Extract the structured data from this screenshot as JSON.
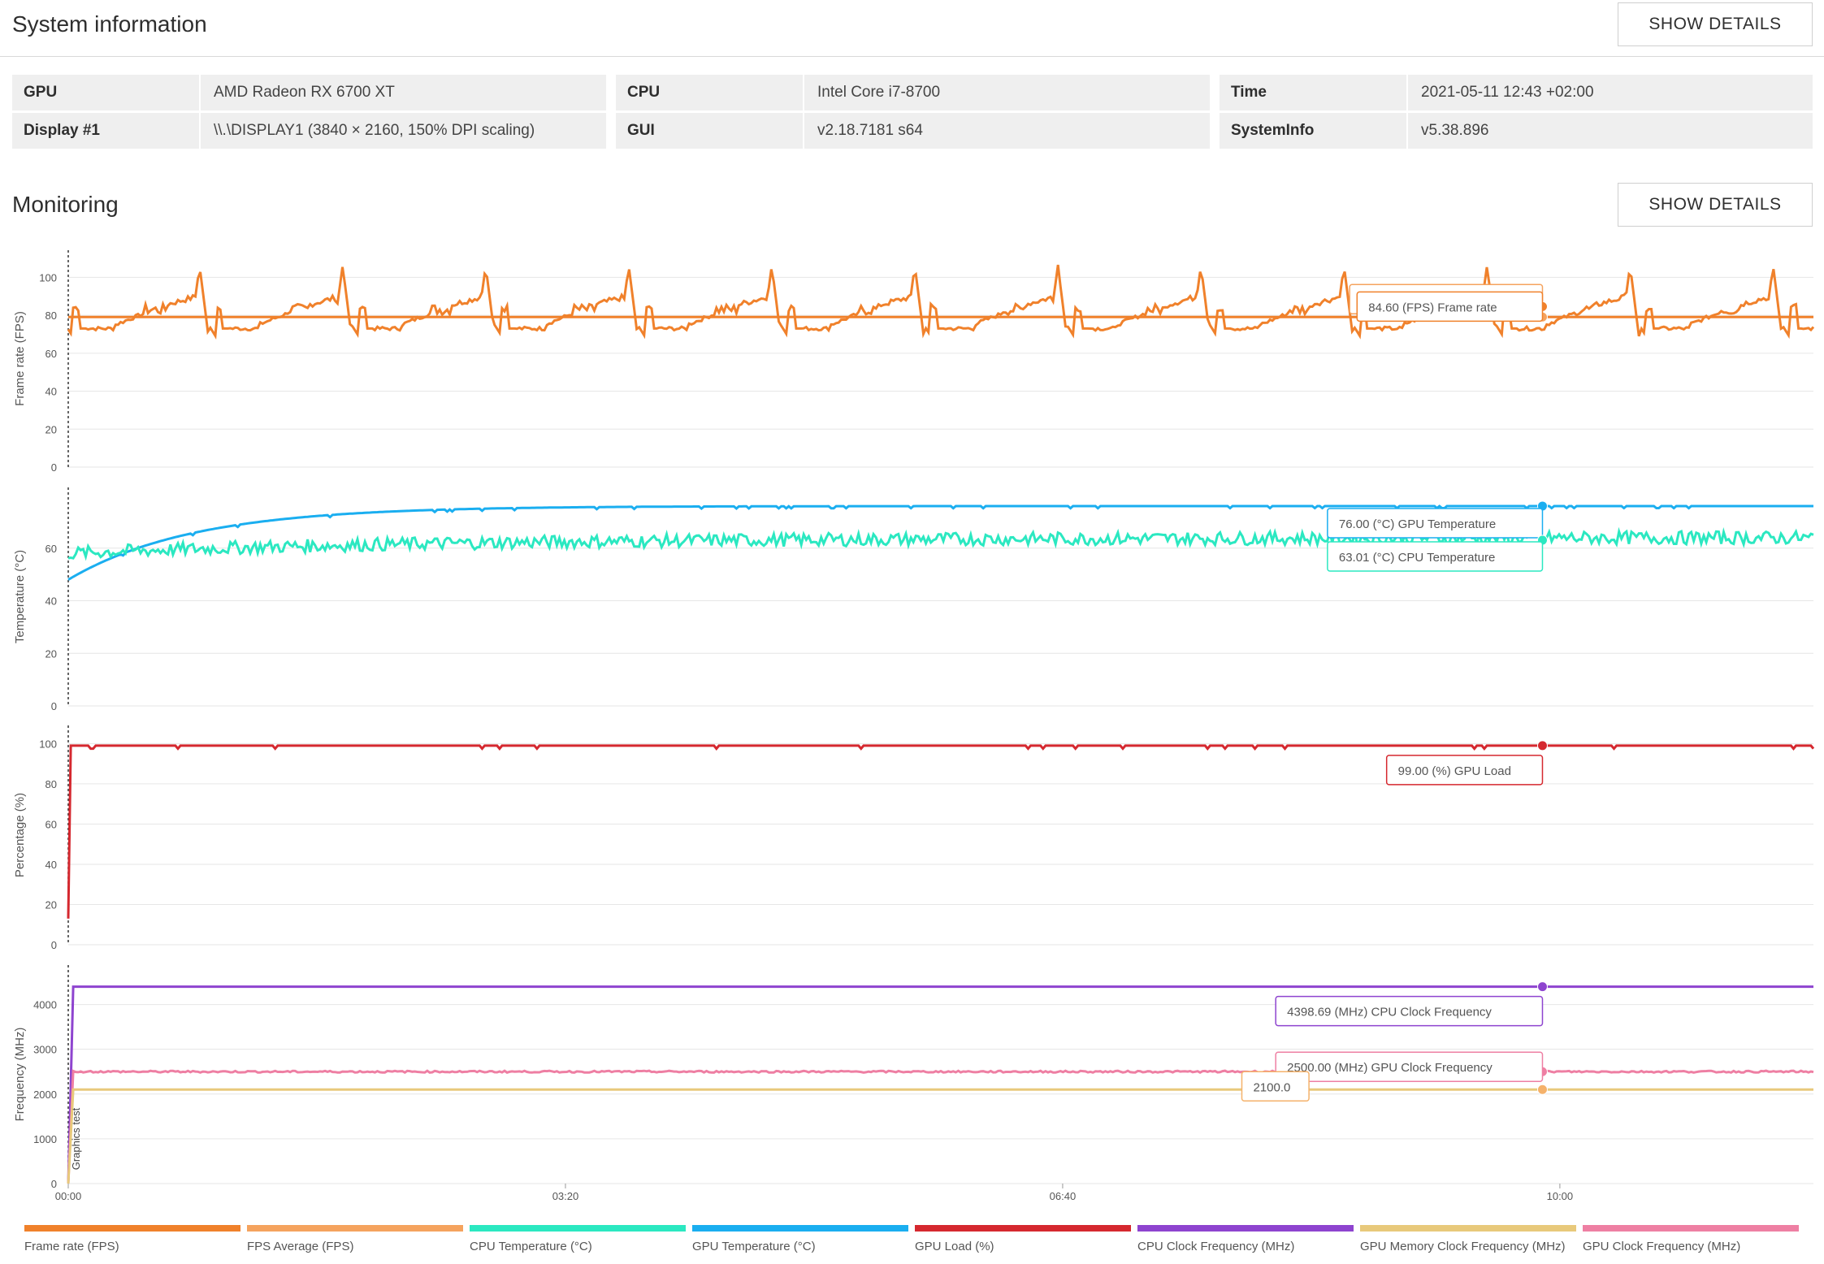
{
  "system_information": {
    "title": "System information",
    "button": "SHOW DETAILS",
    "rows": [
      [
        {
          "key": "GPU",
          "value": "AMD Radeon RX 6700 XT"
        },
        {
          "key": "CPU",
          "value": "Intel Core i7-8700"
        },
        {
          "key": "Time",
          "value": "2021-05-11 12:43 +02:00"
        }
      ],
      [
        {
          "key": "Display #1",
          "value": "\\\\.\\DISPLAY1 (3840 × 2160, 150% DPI scaling)"
        },
        {
          "key": "GUI",
          "value": "v2.18.7181 s64"
        },
        {
          "key": "SystemInfo",
          "value": "v5.38.896"
        }
      ]
    ]
  },
  "monitoring": {
    "title": "Monitoring",
    "button": "SHOW DETAILS"
  },
  "chart_data": [
    {
      "type": "line",
      "ylabel": "Frame rate (FPS)",
      "ylim": [
        0,
        110
      ],
      "yticks": [
        0,
        20,
        40,
        60,
        80,
        100
      ],
      "series": [
        {
          "name": "Frame rate (FPS)",
          "color": "#f0812b",
          "pattern": "fps"
        },
        {
          "name": "FPS Average (FPS)",
          "color": "#f0812b",
          "constant": 79.09
        }
      ],
      "tooltips": [
        {
          "text": "79.09 (FPS) FPS Average",
          "color": "#f5a35e",
          "value": 79.09
        },
        {
          "text": "84.60 (FPS) Frame rate",
          "color": "#f0812b",
          "value": 84.6
        }
      ]
    },
    {
      "type": "line",
      "ylabel": "Temperature (°C)",
      "ylim": [
        0,
        80
      ],
      "yticks": [
        0,
        20,
        40,
        60
      ],
      "series": [
        {
          "name": "GPU Temperature (°C)",
          "color": "#1aaef0",
          "start": 48,
          "end": 76
        },
        {
          "name": "CPU Temperature (°C)",
          "color": "#2be8c1",
          "start": 58,
          "end": 64
        }
      ],
      "tooltips": [
        {
          "text": "76.00 (°C) GPU Temperature",
          "color": "#1aaef0",
          "value": 76
        },
        {
          "text": "63.01 (°C) CPU Temperature",
          "color": "#2be8c1",
          "value": 63.01
        }
      ]
    },
    {
      "type": "line",
      "ylabel": "Percentage (%)",
      "ylim": [
        0,
        105
      ],
      "yticks": [
        0,
        20,
        40,
        60,
        80,
        100
      ],
      "series": [
        {
          "name": "GPU Load (%)",
          "color": "#d5282f",
          "start": 13,
          "end": 99
        }
      ],
      "tooltips": [
        {
          "text": "99.00 (%) GPU Load",
          "color": "#d5282f",
          "value": 99
        }
      ]
    },
    {
      "type": "line",
      "ylabel": "Frequency (MHz)",
      "ylim": [
        0,
        4700
      ],
      "yticks": [
        0,
        1000,
        2000,
        3000,
        4000
      ],
      "series": [
        {
          "name": "CPU Clock Frequency (MHz)",
          "color": "#8e44cf",
          "constant": 4398.69
        },
        {
          "name": "GPU Clock Frequency (MHz)",
          "color": "#ee7fa3",
          "constant": 2500
        },
        {
          "name": "GPU Memory Clock Frequency (MHz)",
          "color": "#e8c97b",
          "constant": 2100
        }
      ],
      "tooltips": [
        {
          "text": "4398.69 (MHz) CPU Clock Frequency",
          "color": "#8e44cf",
          "value": 4398.69
        },
        {
          "text": "2500.00 (MHz) GPU Clock Frequency",
          "color": "#ee7fa3",
          "value": 2500
        },
        {
          "text": "2100.0",
          "color": "#f5b26b",
          "value": 2100
        }
      ],
      "marker": "Graphics test"
    }
  ],
  "xaxis": {
    "ticks": [
      "00:00",
      "03:20",
      "06:40",
      "10:00"
    ],
    "tick_seconds": [
      0,
      200,
      400,
      600
    ],
    "max_seconds": 702,
    "cursor_seconds": 593
  },
  "legend": [
    {
      "label": "Frame rate (FPS)",
      "color": "#f0812b"
    },
    {
      "label": "FPS Average (FPS)",
      "color": "#f5a35e"
    },
    {
      "label": "CPU Temperature (°C)",
      "color": "#2be8c1"
    },
    {
      "label": "GPU Temperature (°C)",
      "color": "#1aaef0"
    },
    {
      "label": "GPU Load (%)",
      "color": "#d5282f"
    },
    {
      "label": "CPU Clock Frequency (MHz)",
      "color": "#8e44cf"
    },
    {
      "label": "GPU Memory Clock Frequency (MHz)",
      "color": "#e8c97b"
    },
    {
      "label": "GPU Clock Frequency (MHz)",
      "color": "#ee7fa3"
    }
  ]
}
